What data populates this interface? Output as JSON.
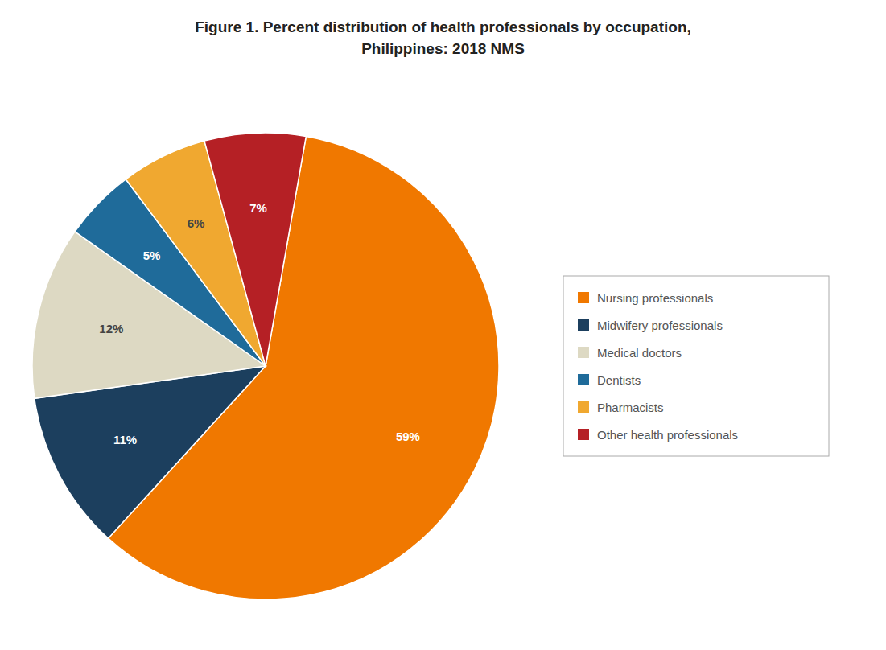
{
  "chart_data": {
    "type": "pie",
    "title": "Figure 1. Percent distribution of health professionals by occupation,\nPhilippines: 2018 NMS",
    "categories": [
      "Nursing professionals",
      "Midwifery professionals",
      "Medical doctors",
      "Dentists",
      "Pharmacists",
      "Other health professionals"
    ],
    "values": [
      59,
      11,
      12,
      5,
      6,
      7
    ],
    "value_labels": [
      "59%",
      "11%",
      "12%",
      "5%",
      "6%",
      "7%"
    ],
    "colors": [
      "#F07800",
      "#1C3F5E",
      "#DDD9C3",
      "#1F6B9A",
      "#F0A830",
      "#B52025"
    ],
    "data_labels": true,
    "legend": "right"
  }
}
